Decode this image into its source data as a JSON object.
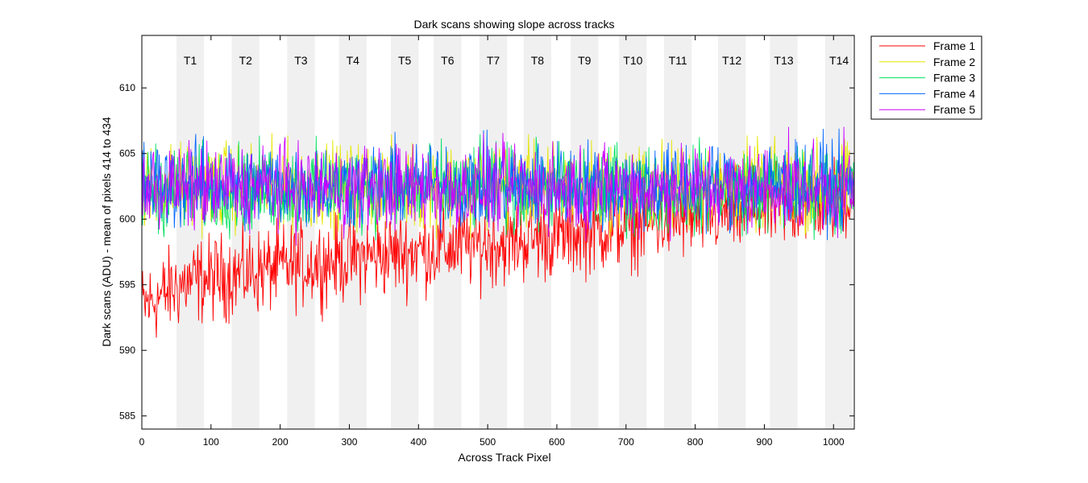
{
  "chart_data": {
    "type": "line",
    "title": "Dark scans showing slope across tracks",
    "xlabel": "Across Track Pixel",
    "ylabel": "Dark scans (ADU) - mean of pixels 414 to 434",
    "xlim": [
      0,
      1030
    ],
    "ylim": [
      584,
      614
    ],
    "xticks": [
      0,
      100,
      200,
      300,
      400,
      500,
      600,
      700,
      800,
      900,
      1000
    ],
    "yticks": [
      585,
      590,
      595,
      600,
      605,
      610
    ],
    "grid": false,
    "legend_position": "outside-top-right",
    "tracks": [
      {
        "label": "T1",
        "x_start": 50,
        "x_end": 90
      },
      {
        "label": "T2",
        "x_start": 130,
        "x_end": 170
      },
      {
        "label": "T3",
        "x_start": 210,
        "x_end": 250
      },
      {
        "label": "T4",
        "x_start": 285,
        "x_end": 325
      },
      {
        "label": "T5",
        "x_start": 360,
        "x_end": 400
      },
      {
        "label": "T6",
        "x_start": 422,
        "x_end": 462
      },
      {
        "label": "T7",
        "x_start": 488,
        "x_end": 528
      },
      {
        "label": "T8",
        "x_start": 552,
        "x_end": 592
      },
      {
        "label": "T9",
        "x_start": 620,
        "x_end": 660
      },
      {
        "label": "T10",
        "x_start": 690,
        "x_end": 730
      },
      {
        "label": "T11",
        "x_start": 755,
        "x_end": 795
      },
      {
        "label": "T12",
        "x_start": 833,
        "x_end": 873
      },
      {
        "label": "T13",
        "x_start": 908,
        "x_end": 948
      },
      {
        "label": "T14",
        "x_start": 988,
        "x_end": 1028
      }
    ],
    "series": [
      {
        "name": "Frame 1",
        "color": "#ff0000",
        "x": [
          0,
          100,
          200,
          300,
          400,
          500,
          600,
          700,
          800,
          900,
          1000,
          1030
        ],
        "values": [
          594.5,
          595.5,
          596.3,
          597.0,
          597.6,
          598.1,
          598.7,
          599.5,
          600.2,
          600.8,
          601.5,
          601.8
        ]
      },
      {
        "name": "Frame 2",
        "color": "#e6e600",
        "x": [
          0,
          1030
        ],
        "values": [
          602.5,
          602.5
        ]
      },
      {
        "name": "Frame 3",
        "color": "#00e060",
        "x": [
          0,
          1030
        ],
        "values": [
          602.3,
          602.3
        ]
      },
      {
        "name": "Frame 4",
        "color": "#0066ff",
        "x": [
          0,
          1030
        ],
        "values": [
          602.6,
          602.6
        ]
      },
      {
        "name": "Frame 5",
        "color": "#cc00ff",
        "x": [
          0,
          1030
        ],
        "values": [
          602.4,
          602.4
        ]
      }
    ]
  }
}
